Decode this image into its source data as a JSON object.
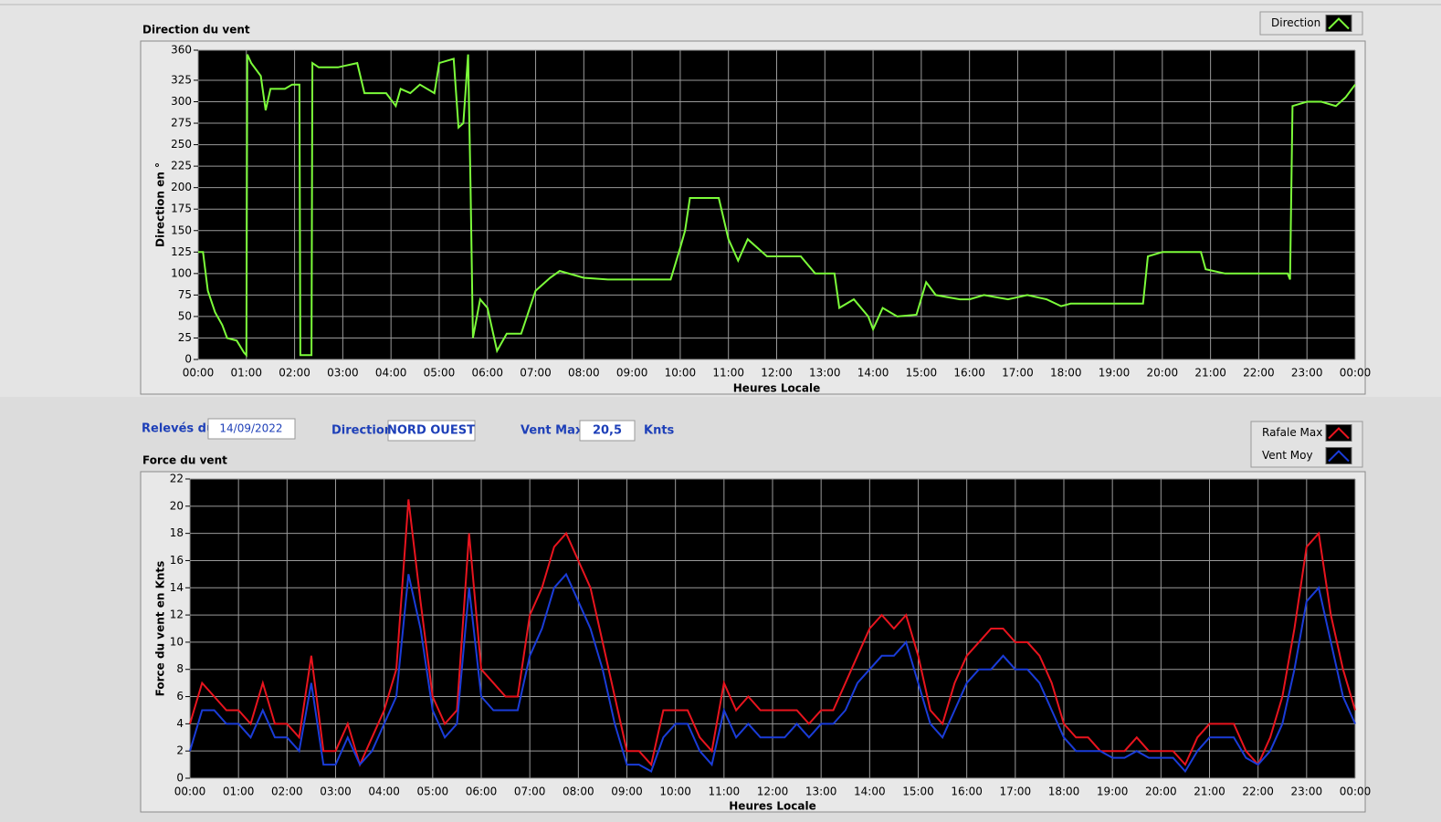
{
  "form": {
    "date_label": "Relevés du",
    "date": "14/09/2022",
    "direction_label": "Direction",
    "direction": "NORD OUEST",
    "vent_max_label": "Vent Max",
    "vent_max": "20,5",
    "unit": "Knts"
  },
  "chart_data": [
    {
      "type": "line",
      "title": "Direction du vent",
      "xlabel": "Heures Locale",
      "ylabel": "Direction en °",
      "x": [
        0,
        0.1,
        0.2,
        0.35,
        0.5,
        0.6,
        0.8,
        0.95,
        1.0,
        1.02,
        1.1,
        1.3,
        1.4,
        1.5,
        1.8,
        1.95,
        2.1,
        2.12,
        2.35,
        2.37,
        2.5,
        2.9,
        3.3,
        3.45,
        3.9,
        4.1,
        4.2,
        4.4,
        4.6,
        4.9,
        5.0,
        5.3,
        5.4,
        5.5,
        5.6,
        5.65,
        5.7,
        5.85,
        6.0,
        6.2,
        6.4,
        6.7,
        7.0,
        7.3,
        7.5,
        8.0,
        8.5,
        9.0,
        9.8,
        10.0,
        10.1,
        10.2,
        10.8,
        11.0,
        11.2,
        11.4,
        11.6,
        11.8,
        12.5,
        12.8,
        13.2,
        13.3,
        13.6,
        13.9,
        14.0,
        14.2,
        14.5,
        14.9,
        15.1,
        15.3,
        15.8,
        16.0,
        16.3,
        16.8,
        17.2,
        17.6,
        17.9,
        18.1,
        19.6,
        19.7,
        20.0,
        20.8,
        20.9,
        21.3,
        22.6,
        22.65,
        22.7,
        23.0,
        23.3,
        23.6,
        23.8,
        24.0
      ],
      "series": [
        {
          "name": "Direction",
          "color": "#7cfc3a",
          "values": [
            125,
            125,
            80,
            55,
            40,
            25,
            22,
            8,
            5,
            355,
            345,
            330,
            290,
            315,
            315,
            320,
            320,
            5,
            5,
            345,
            340,
            340,
            345,
            310,
            310,
            295,
            315,
            310,
            320,
            310,
            345,
            350,
            270,
            275,
            355,
            200,
            25,
            70,
            60,
            10,
            30,
            30,
            80,
            95,
            103,
            95,
            93,
            93,
            93,
            130,
            150,
            188,
            188,
            140,
            115,
            140,
            130,
            120,
            120,
            100,
            100,
            60,
            70,
            50,
            35,
            60,
            50,
            52,
            90,
            75,
            70,
            70,
            75,
            70,
            75,
            70,
            62,
            65,
            65,
            120,
            125,
            125,
            105,
            100,
            100,
            93,
            295,
            300,
            300,
            295,
            305,
            320
          ]
        }
      ],
      "xlim": [
        0,
        24
      ],
      "xticks": [
        {
          "value": 0,
          "label": "00:00"
        },
        {
          "value": 1,
          "label": "01:00"
        },
        {
          "value": 2,
          "label": "02:00"
        },
        {
          "value": 3,
          "label": "03:00"
        },
        {
          "value": 4,
          "label": "04:00"
        },
        {
          "value": 5,
          "label": "05:00"
        },
        {
          "value": 6,
          "label": "06:00"
        },
        {
          "value": 7,
          "label": "07:00"
        },
        {
          "value": 8,
          "label": "08:00"
        },
        {
          "value": 9,
          "label": "09:00"
        },
        {
          "value": 10,
          "label": "10:00"
        },
        {
          "value": 11,
          "label": "11:00"
        },
        {
          "value": 12,
          "label": "12:00"
        },
        {
          "value": 13,
          "label": "13:00"
        },
        {
          "value": 14,
          "label": "14:00"
        },
        {
          "value": 15,
          "label": "15:00"
        },
        {
          "value": 16,
          "label": "16:00"
        },
        {
          "value": 17,
          "label": "17:00"
        },
        {
          "value": 18,
          "label": "18:00"
        },
        {
          "value": 19,
          "label": "19:00"
        },
        {
          "value": 20,
          "label": "20:00"
        },
        {
          "value": 21,
          "label": "21:00"
        },
        {
          "value": 22,
          "label": "22:00"
        },
        {
          "value": 23,
          "label": "23:00"
        },
        {
          "value": 24,
          "label": "00:00"
        }
      ],
      "ylim": [
        0,
        360
      ],
      "yticks": [
        0,
        25,
        50,
        75,
        100,
        125,
        150,
        175,
        200,
        225,
        250,
        275,
        300,
        325,
        360
      ],
      "grid": true,
      "legend": "top-right"
    },
    {
      "type": "line",
      "title": "Force du vent",
      "xlabel": "Heures Locale",
      "ylabel": "Force du vent en Knts",
      "x": [
        0,
        0.25,
        0.5,
        0.75,
        1,
        1.25,
        1.5,
        1.75,
        2,
        2.25,
        2.5,
        2.75,
        3,
        3.25,
        3.5,
        3.75,
        4,
        4.25,
        4.5,
        4.75,
        5,
        5.25,
        5.5,
        5.75,
        6,
        6.25,
        6.5,
        6.75,
        7,
        7.25,
        7.5,
        7.75,
        8,
        8.25,
        8.5,
        8.75,
        9,
        9.25,
        9.5,
        9.75,
        10,
        10.25,
        10.5,
        10.75,
        11,
        11.25,
        11.5,
        11.75,
        12,
        12.25,
        12.5,
        12.75,
        13,
        13.25,
        13.5,
        13.75,
        14,
        14.25,
        14.5,
        14.75,
        15,
        15.25,
        15.5,
        15.75,
        16,
        16.25,
        16.5,
        16.75,
        17,
        17.25,
        17.5,
        17.75,
        18,
        18.25,
        18.5,
        18.75,
        19,
        19.25,
        19.5,
        19.75,
        20,
        20.25,
        20.5,
        20.75,
        21,
        21.25,
        21.5,
        21.75,
        22,
        22.25,
        22.5,
        22.75,
        23,
        23.25,
        23.5,
        23.75,
        24
      ],
      "series": [
        {
          "name": "Rafale Max",
          "color": "#e8141e",
          "values": [
            4,
            7,
            6,
            5,
            5,
            4,
            7,
            4,
            4,
            3,
            9,
            2,
            2,
            4,
            1,
            3,
            5,
            8,
            20.5,
            13,
            6,
            4,
            5,
            18,
            8,
            7,
            6,
            6,
            12,
            14,
            17,
            18,
            16,
            14,
            10,
            6,
            2,
            2,
            1,
            5,
            5,
            5,
            3,
            2,
            7,
            5,
            6,
            5,
            5,
            5,
            5,
            4,
            5,
            5,
            7,
            9,
            11,
            12,
            11,
            12,
            9,
            5,
            4,
            7,
            9,
            10,
            11,
            11,
            10,
            10,
            9,
            7,
            4,
            3,
            3,
            2,
            2,
            2,
            3,
            2,
            2,
            2,
            1,
            3,
            4,
            4,
            4,
            2,
            1,
            3,
            6,
            11,
            17,
            18,
            12,
            8,
            5
          ]
        },
        {
          "name": "Vent Moy",
          "color": "#1a3cd8",
          "values": [
            2,
            5,
            5,
            4,
            4,
            3,
            5,
            3,
            3,
            2,
            7,
            1,
            1,
            3,
            1,
            2,
            4,
            6,
            15,
            11,
            5,
            3,
            4,
            14,
            6,
            5,
            5,
            5,
            9,
            11,
            14,
            15,
            13,
            11,
            8,
            4,
            1,
            1,
            0.5,
            3,
            4,
            4,
            2,
            1,
            5,
            3,
            4,
            3,
            3,
            3,
            4,
            3,
            4,
            4,
            5,
            7,
            8,
            9,
            9,
            10,
            7,
            4,
            3,
            5,
            7,
            8,
            8,
            9,
            8,
            8,
            7,
            5,
            3,
            2,
            2,
            2,
            1.5,
            1.5,
            2,
            1.5,
            1.5,
            1.5,
            0.5,
            2,
            3,
            3,
            3,
            1.5,
            1,
            2,
            4,
            8,
            13,
            14,
            10,
            6,
            4
          ]
        }
      ],
      "xlim": [
        0,
        24
      ],
      "xticks": [
        {
          "value": 0,
          "label": "00:00"
        },
        {
          "value": 1,
          "label": "01:00"
        },
        {
          "value": 2,
          "label": "02:00"
        },
        {
          "value": 3,
          "label": "03:00"
        },
        {
          "value": 4,
          "label": "04:00"
        },
        {
          "value": 5,
          "label": "05:00"
        },
        {
          "value": 6,
          "label": "06:00"
        },
        {
          "value": 7,
          "label": "07:00"
        },
        {
          "value": 8,
          "label": "08:00"
        },
        {
          "value": 9,
          "label": "09:00"
        },
        {
          "value": 10,
          "label": "10:00"
        },
        {
          "value": 11,
          "label": "11:00"
        },
        {
          "value": 12,
          "label": "12:00"
        },
        {
          "value": 13,
          "label": "13:00"
        },
        {
          "value": 14,
          "label": "14:00"
        },
        {
          "value": 15,
          "label": "15:00"
        },
        {
          "value": 16,
          "label": "16:00"
        },
        {
          "value": 17,
          "label": "17:00"
        },
        {
          "value": 18,
          "label": "18:00"
        },
        {
          "value": 19,
          "label": "19:00"
        },
        {
          "value": 20,
          "label": "20:00"
        },
        {
          "value": 21,
          "label": "21:00"
        },
        {
          "value": 22,
          "label": "22:00"
        },
        {
          "value": 23,
          "label": "23:00"
        },
        {
          "value": 24,
          "label": "00:00"
        }
      ],
      "ylim": [
        0,
        22
      ],
      "yticks": [
        0,
        2,
        4,
        6,
        8,
        10,
        12,
        14,
        16,
        18,
        20,
        22
      ],
      "grid": true,
      "legend": "top-right"
    }
  ]
}
